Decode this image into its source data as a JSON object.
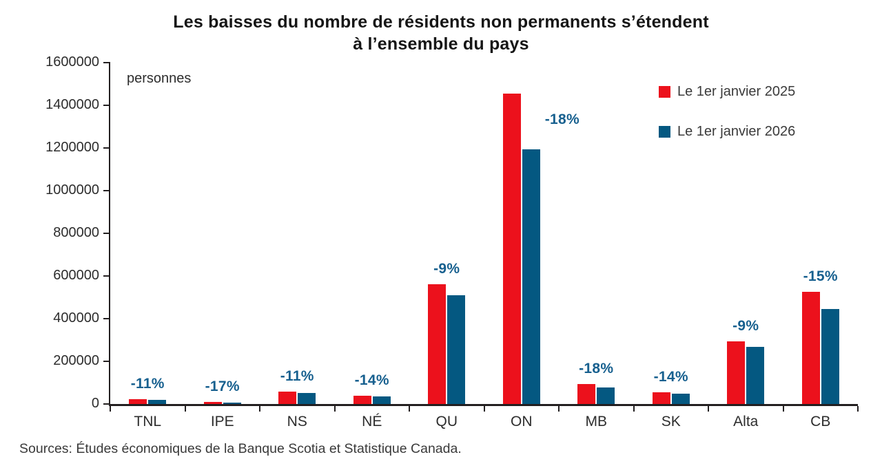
{
  "title": {
    "line1": "Les baisses du nombre de résidents non permanents s’étendent",
    "line2": "à l’ensemble du pays"
  },
  "axis_note": "personnes",
  "legend": [
    {
      "label": "Le 1er janvier 2025",
      "color": "#ec111c"
    },
    {
      "label": "Le 1er janvier 2026",
      "color": "#045881"
    }
  ],
  "source": "Sources: Études économiques de la Banque Scotia et Statistique Canada.",
  "colors": {
    "series_2025": "#ec111c",
    "series_2026": "#045881",
    "pct_label": "#17608f",
    "axis": "#231f20"
  },
  "chart_data": {
    "type": "bar",
    "title": "Les baisses du nombre de résidents non permanents s’étendent à l’ensemble du pays",
    "unit_note": "personnes",
    "categories": [
      "TNL",
      "IPE",
      "NS",
      "NÉ",
      "QU",
      "ON",
      "MB",
      "SK",
      "Alta",
      "CB"
    ],
    "series": [
      {
        "name": "Le 1er janvier 2025",
        "color": "#ec111c",
        "values": [
          22000,
          9000,
          57000,
          40000,
          560000,
          1455000,
          95000,
          56000,
          295000,
          525000
        ]
      },
      {
        "name": "Le 1er janvier 2026",
        "color": "#045881",
        "values": [
          19500,
          7500,
          51000,
          34500,
          510000,
          1195000,
          78000,
          48000,
          268000,
          446000
        ]
      }
    ],
    "pct_labels": [
      "-11%",
      "-17%",
      "-11%",
      "-14%",
      "-9%",
      "-18%",
      "-18%",
      "-14%",
      "-9%",
      "-15%"
    ],
    "pct_label_positions": [
      "above",
      "above",
      "above",
      "above",
      "above",
      "right",
      "above",
      "above",
      "above",
      "above"
    ],
    "xlabel": "",
    "ylabel": "",
    "ylim": [
      0,
      1600000
    ],
    "ytick_step": 200000,
    "grid": false,
    "legend_position": "top-right"
  }
}
